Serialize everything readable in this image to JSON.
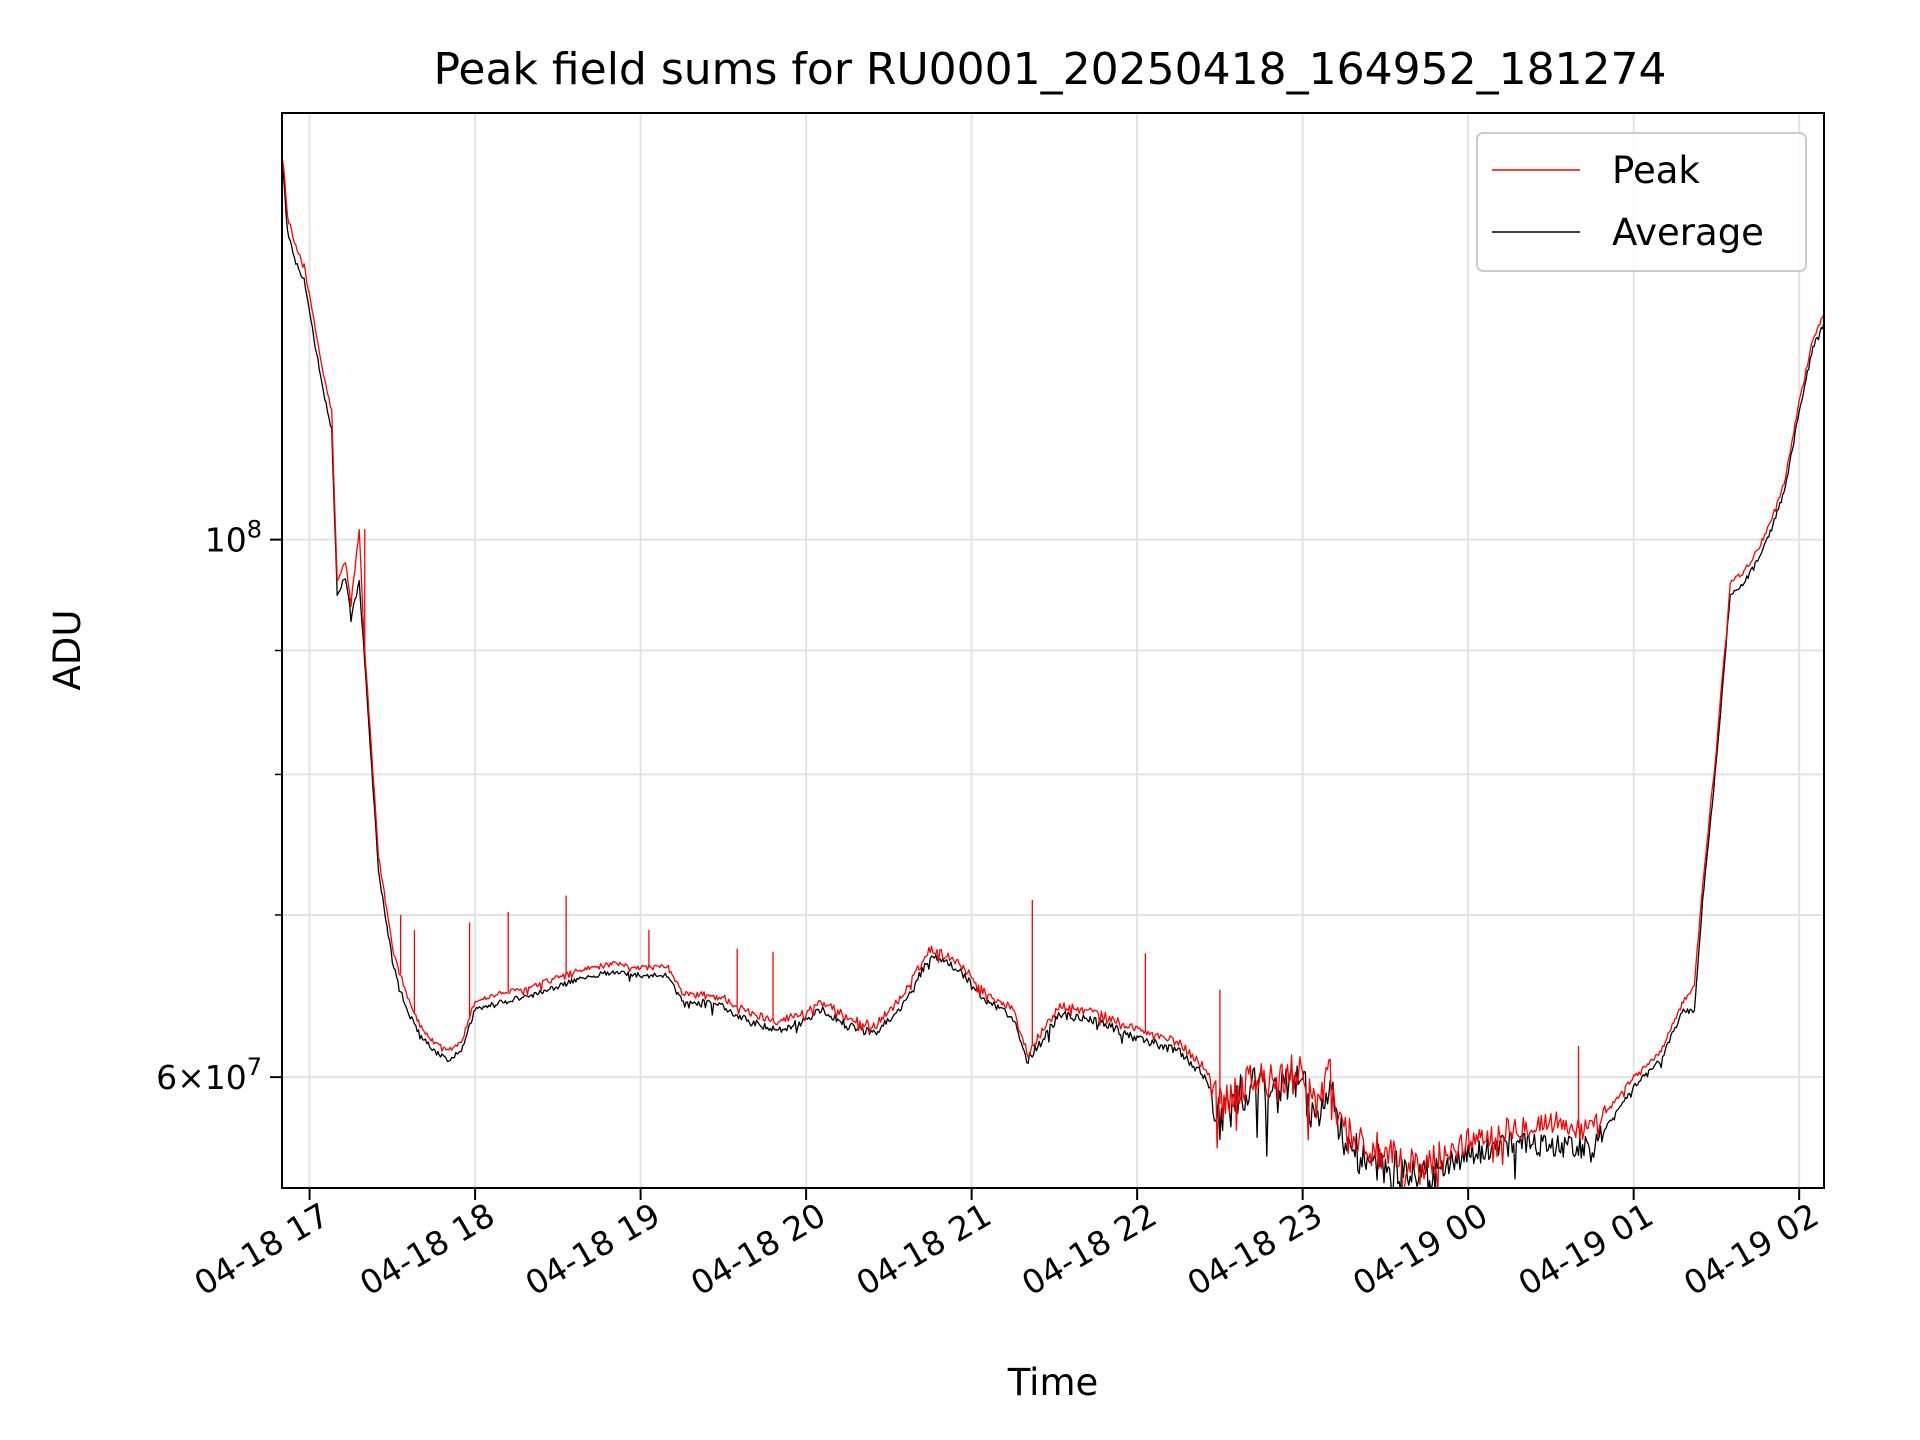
{
  "chart_data": {
    "type": "line",
    "title": "Peak field sums for RU0001_20250418_164952_181274",
    "xlabel": "Time",
    "ylabel": "ADU",
    "yscale": "log",
    "xlim": [
      "2025-04-18 16:50",
      "2025-04-19 02:09"
    ],
    "ylim": [
      54000000,
      150000000
    ],
    "x_ticks": [
      "04-18 17",
      "04-18 18",
      "04-18 19",
      "04-18 20",
      "04-18 21",
      "04-18 22",
      "04-18 23",
      "04-19 00",
      "04-19 01",
      "04-19 02"
    ],
    "y_ticks": [
      {
        "value": 100000000,
        "label": "10^8"
      },
      {
        "value": 60000000,
        "label": "6×10^7"
      }
    ],
    "grid": true,
    "legend": {
      "position": "top-right"
    },
    "series": [
      {
        "name": "Peak",
        "color": "#ff0000",
        "points": [
          [
            "2025-04-18 16:50",
            145000000
          ],
          [
            "2025-04-18 16:52",
            136000000
          ],
          [
            "2025-04-18 16:55",
            132000000
          ],
          [
            "2025-04-18 16:58",
            130000000
          ],
          [
            "2025-04-18 17:00",
            126000000
          ],
          [
            "2025-04-18 17:05",
            117000000
          ],
          [
            "2025-04-18 17:08",
            113000000
          ],
          [
            "2025-04-18 17:10",
            96000000
          ],
          [
            "2025-04-18 17:13",
            98000000
          ],
          [
            "2025-04-18 17:15",
            94000000
          ],
          [
            "2025-04-18 17:18",
            101000000
          ],
          [
            "2025-04-18 17:20",
            90000000
          ],
          [
            "2025-04-18 17:25",
            74000000
          ],
          [
            "2025-04-18 17:30",
            68000000
          ],
          [
            "2025-04-18 17:35",
            65000000
          ],
          [
            "2025-04-18 17:40",
            63000000
          ],
          [
            "2025-04-18 17:45",
            62000000
          ],
          [
            "2025-04-18 17:50",
            61500000
          ],
          [
            "2025-04-18 17:55",
            62000000
          ],
          [
            "2025-04-18 18:00",
            64500000
          ],
          [
            "2025-04-18 18:10",
            65000000
          ],
          [
            "2025-04-18 18:20",
            65300000
          ],
          [
            "2025-04-18 18:30",
            66000000
          ],
          [
            "2025-04-18 18:40",
            66500000
          ],
          [
            "2025-04-18 18:50",
            66800000
          ],
          [
            "2025-04-18 19:00",
            66600000
          ],
          [
            "2025-04-18 19:10",
            66600000
          ],
          [
            "2025-04-18 19:15",
            65000000
          ],
          [
            "2025-04-18 19:30",
            64700000
          ],
          [
            "2025-04-18 19:40",
            63700000
          ],
          [
            "2025-04-18 19:50",
            63300000
          ],
          [
            "2025-04-18 20:00",
            63800000
          ],
          [
            "2025-04-18 20:05",
            64500000
          ],
          [
            "2025-04-18 20:15",
            63500000
          ],
          [
            "2025-04-18 20:25",
            63000000
          ],
          [
            "2025-04-18 20:35",
            64800000
          ],
          [
            "2025-04-18 20:45",
            67800000
          ],
          [
            "2025-04-18 20:55",
            67000000
          ],
          [
            "2025-04-18 21:05",
            65000000
          ],
          [
            "2025-04-18 21:15",
            64000000
          ],
          [
            "2025-04-18 21:20",
            61500000
          ],
          [
            "2025-04-18 21:25",
            62500000
          ],
          [
            "2025-04-18 21:32",
            64200000
          ],
          [
            "2025-04-18 21:45",
            63800000
          ],
          [
            "2025-04-18 22:00",
            62800000
          ],
          [
            "2025-04-18 22:15",
            62000000
          ],
          [
            "2025-04-18 22:25",
            60500000
          ],
          [
            "2025-04-18 22:30",
            58500000
          ],
          [
            "2025-04-18 22:40",
            60000000
          ],
          [
            "2025-04-18 22:50",
            59500000
          ],
          [
            "2025-04-18 23:00",
            60500000
          ],
          [
            "2025-04-18 23:05",
            58500000
          ],
          [
            "2025-04-18 23:10",
            60000000
          ],
          [
            "2025-04-18 23:15",
            57000000
          ],
          [
            "2025-04-18 23:25",
            56000000
          ],
          [
            "2025-04-18 23:35",
            55200000
          ],
          [
            "2025-04-18 23:45",
            55000000
          ],
          [
            "2025-04-19 00:00",
            56500000
          ],
          [
            "2025-04-19 00:15",
            57200000
          ],
          [
            "2025-04-19 00:30",
            57500000
          ],
          [
            "2025-04-19 00:45",
            57000000
          ],
          [
            "2025-04-19 01:00",
            60000000
          ],
          [
            "2025-04-19 01:10",
            61500000
          ],
          [
            "2025-04-19 01:18",
            64500000
          ],
          [
            "2025-04-19 01:22",
            65500000
          ],
          [
            "2025-04-19 01:25",
            72000000
          ],
          [
            "2025-04-19 01:30",
            82000000
          ],
          [
            "2025-04-19 01:35",
            96000000
          ],
          [
            "2025-04-19 01:40",
            97000000
          ],
          [
            "2025-04-19 01:45",
            99000000
          ],
          [
            "2025-04-19 01:50",
            102000000
          ],
          [
            "2025-04-19 01:55",
            106000000
          ],
          [
            "2025-04-19 02:00",
            114000000
          ],
          [
            "2025-04-19 02:05",
            121000000
          ],
          [
            "2025-04-19 02:09",
            124000000
          ]
        ],
        "spikes": [
          [
            "2025-04-18 17:20",
            101000000
          ],
          [
            "2025-04-18 17:33",
            70000000
          ],
          [
            "2025-04-18 17:38",
            69000000
          ],
          [
            "2025-04-18 17:58",
            69500000
          ],
          [
            "2025-04-18 18:12",
            70200000
          ],
          [
            "2025-04-18 18:33",
            71300000
          ],
          [
            "2025-04-18 19:03",
            69000000
          ],
          [
            "2025-04-18 19:35",
            67800000
          ],
          [
            "2025-04-18 19:48",
            67600000
          ],
          [
            "2025-04-18 21:22",
            71000000
          ],
          [
            "2025-04-18 22:03",
            67500000
          ],
          [
            "2025-04-18 22:30",
            65200000
          ],
          [
            "2025-04-19 00:40",
            61800000
          ]
        ]
      },
      {
        "name": "Average",
        "color": "#000000",
        "points": [
          [
            "2025-04-18 16:50",
            144000000
          ],
          [
            "2025-04-18 16:52",
            134000000
          ],
          [
            "2025-04-18 16:55",
            130000000
          ],
          [
            "2025-04-18 16:58",
            128000000
          ],
          [
            "2025-04-18 17:00",
            124000000
          ],
          [
            "2025-04-18 17:05",
            115000000
          ],
          [
            "2025-04-18 17:08",
            111000000
          ],
          [
            "2025-04-18 17:10",
            95000000
          ],
          [
            "2025-04-18 17:13",
            96500000
          ],
          [
            "2025-04-18 17:15",
            93000000
          ],
          [
            "2025-04-18 17:18",
            96000000
          ],
          [
            "2025-04-18 17:20",
            89000000
          ],
          [
            "2025-04-18 17:25",
            73000000
          ],
          [
            "2025-04-18 17:30",
            67000000
          ],
          [
            "2025-04-18 17:35",
            64000000
          ],
          [
            "2025-04-18 17:40",
            62500000
          ],
          [
            "2025-04-18 17:45",
            61500000
          ],
          [
            "2025-04-18 17:50",
            61000000
          ],
          [
            "2025-04-18 17:55",
            61500000
          ],
          [
            "2025-04-18 18:00",
            64000000
          ],
          [
            "2025-04-18 18:10",
            64500000
          ],
          [
            "2025-04-18 18:20",
            64800000
          ],
          [
            "2025-04-18 18:30",
            65400000
          ],
          [
            "2025-04-18 18:40",
            66000000
          ],
          [
            "2025-04-18 18:50",
            66300000
          ],
          [
            "2025-04-18 19:00",
            66100000
          ],
          [
            "2025-04-18 19:10",
            66100000
          ],
          [
            "2025-04-18 19:15",
            64500000
          ],
          [
            "2025-04-18 19:30",
            64200000
          ],
          [
            "2025-04-18 19:40",
            63200000
          ],
          [
            "2025-04-18 19:50",
            62800000
          ],
          [
            "2025-04-18 20:00",
            63300000
          ],
          [
            "2025-04-18 20:05",
            64000000
          ],
          [
            "2025-04-18 20:15",
            63000000
          ],
          [
            "2025-04-18 20:25",
            62500000
          ],
          [
            "2025-04-18 20:35",
            64300000
          ],
          [
            "2025-04-18 20:45",
            67300000
          ],
          [
            "2025-04-18 20:55",
            66500000
          ],
          [
            "2025-04-18 21:05",
            64500000
          ],
          [
            "2025-04-18 21:15",
            63500000
          ],
          [
            "2025-04-18 21:20",
            61000000
          ],
          [
            "2025-04-18 21:25",
            62000000
          ],
          [
            "2025-04-18 21:32",
            63700000
          ],
          [
            "2025-04-18 21:45",
            63300000
          ],
          [
            "2025-04-18 22:00",
            62300000
          ],
          [
            "2025-04-18 22:15",
            61500000
          ],
          [
            "2025-04-18 22:25",
            60000000
          ],
          [
            "2025-04-18 22:30",
            57500000
          ],
          [
            "2025-04-18 22:40",
            59500000
          ],
          [
            "2025-04-18 22:50",
            59000000
          ],
          [
            "2025-04-18 23:00",
            60000000
          ],
          [
            "2025-04-18 23:05",
            57000000
          ],
          [
            "2025-04-18 23:10",
            59500000
          ],
          [
            "2025-04-18 23:15",
            56000000
          ],
          [
            "2025-04-18 23:25",
            55500000
          ],
          [
            "2025-04-18 23:35",
            54800000
          ],
          [
            "2025-04-18 23:45",
            54500000
          ],
          [
            "2025-04-19 00:00",
            55800000
          ],
          [
            "2025-04-19 00:15",
            56200000
          ],
          [
            "2025-04-19 00:30",
            56300000
          ],
          [
            "2025-04-19 00:45",
            56100000
          ],
          [
            "2025-04-19 01:00",
            59500000
          ],
          [
            "2025-04-19 01:10",
            61000000
          ],
          [
            "2025-04-19 01:18",
            64000000
          ],
          [
            "2025-04-19 01:22",
            63800000
          ],
          [
            "2025-04-19 01:25",
            71000000
          ],
          [
            "2025-04-19 01:30",
            81000000
          ],
          [
            "2025-04-19 01:35",
            95000000
          ],
          [
            "2025-04-19 01:40",
            96000000
          ],
          [
            "2025-04-19 01:45",
            98000000
          ],
          [
            "2025-04-19 01:50",
            101000000
          ],
          [
            "2025-04-19 01:55",
            105000000
          ],
          [
            "2025-04-19 02:00",
            113000000
          ],
          [
            "2025-04-19 02:05",
            120000000
          ],
          [
            "2025-04-19 02:09",
            123000000
          ]
        ]
      }
    ]
  }
}
